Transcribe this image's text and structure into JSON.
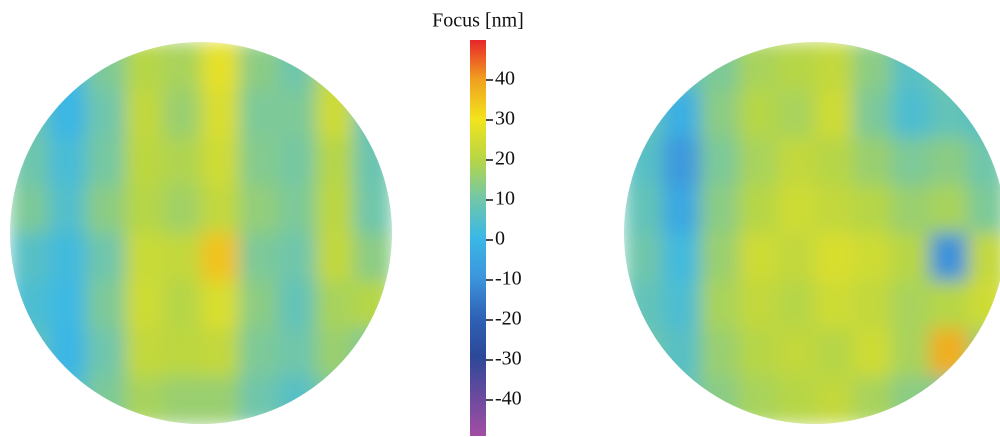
{
  "chart_data": {
    "type": "heatmap",
    "colorbar_label": "Focus [nm]",
    "zlim": [
      -49,
      50
    ],
    "zticks": [
      -40,
      -30,
      -20,
      -10,
      0,
      10,
      20,
      30,
      40
    ],
    "colormap": [
      "#a24ea3",
      "#6a4a9e",
      "#2c4898",
      "#2f62b6",
      "#3c95dc",
      "#3ab8e6",
      "#72c7a8",
      "#b8d644",
      "#f2e41c",
      "#f0a020",
      "#e8262a"
    ],
    "maps": [
      {
        "z": [
          [
            8,
            2,
            12,
            20,
            18,
            28,
            14,
            10,
            22,
            8
          ],
          [
            9,
            0,
            10,
            22,
            16,
            26,
            12,
            12,
            24,
            7
          ],
          [
            10,
            3,
            11,
            21,
            19,
            24,
            13,
            11,
            20,
            9
          ],
          [
            12,
            5,
            14,
            20,
            17,
            22,
            15,
            12,
            21,
            10
          ],
          [
            6,
            2,
            10,
            23,
            22,
            35,
            12,
            10,
            22,
            14
          ],
          [
            4,
            1,
            12,
            24,
            20,
            26,
            14,
            8,
            18,
            20
          ],
          [
            8,
            0,
            10,
            22,
            21,
            22,
            12,
            10,
            16,
            12
          ],
          [
            10,
            4,
            12,
            18,
            16,
            16,
            10,
            6,
            12,
            10
          ]
        ]
      },
      {
        "z": [
          [
            10,
            8,
            12,
            18,
            20,
            22,
            14,
            6,
            10,
            8
          ],
          [
            8,
            -2,
            14,
            20,
            18,
            24,
            12,
            4,
            8,
            6
          ],
          [
            6,
            -8,
            12,
            18,
            22,
            20,
            16,
            12,
            14,
            10
          ],
          [
            8,
            -4,
            14,
            20,
            24,
            22,
            20,
            16,
            18,
            12
          ],
          [
            10,
            2,
            16,
            24,
            22,
            26,
            24,
            20,
            -10,
            22
          ],
          [
            8,
            4,
            18,
            22,
            20,
            24,
            22,
            18,
            20,
            24
          ],
          [
            10,
            6,
            16,
            20,
            22,
            20,
            24,
            18,
            38,
            16
          ],
          [
            12,
            8,
            14,
            18,
            20,
            22,
            18,
            14,
            12,
            10
          ]
        ]
      }
    ]
  }
}
